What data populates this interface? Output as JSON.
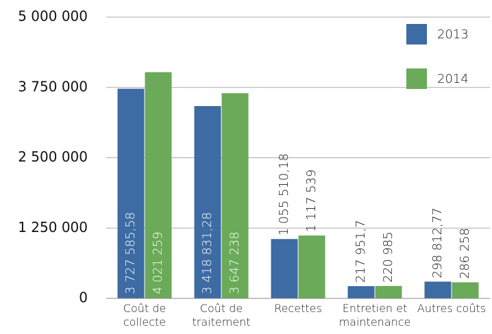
{
  "chart_data": {
    "type": "bar",
    "categories": [
      "Coût de collecte",
      "Coût de traitement",
      "Recettes",
      "Entretien et maintenance",
      "Autres coûts"
    ],
    "series": [
      {
        "name": "2013",
        "color": "#3d6ba3",
        "values": [
          3727585.58,
          3418831.28,
          1055510.18,
          217951.7,
          298812.77
        ],
        "value_labels": [
          "3 727 585,58",
          "3 418 831,28",
          "1 055 510,18",
          "217 951,7",
          "298 812,77"
        ]
      },
      {
        "name": "2014",
        "color": "#6aaa58",
        "values": [
          4021259,
          3647238,
          1117539,
          220985,
          286258
        ],
        "value_labels": [
          "4 021 259",
          "3 647 238",
          "1 117 539",
          "220 985",
          "286 258"
        ]
      }
    ],
    "ylim": [
      0,
      5000000
    ],
    "yticks": [
      0,
      {
        "value": 1250000,
        "label": "1 250 000"
      },
      {
        "value": 2500000,
        "label": "2 500 000"
      },
      {
        "value": 3750000,
        "label": "3 750 000"
      },
      {
        "value": 5000000,
        "label": "5 000 000"
      }
    ],
    "grid": true,
    "legend": "top-right"
  }
}
